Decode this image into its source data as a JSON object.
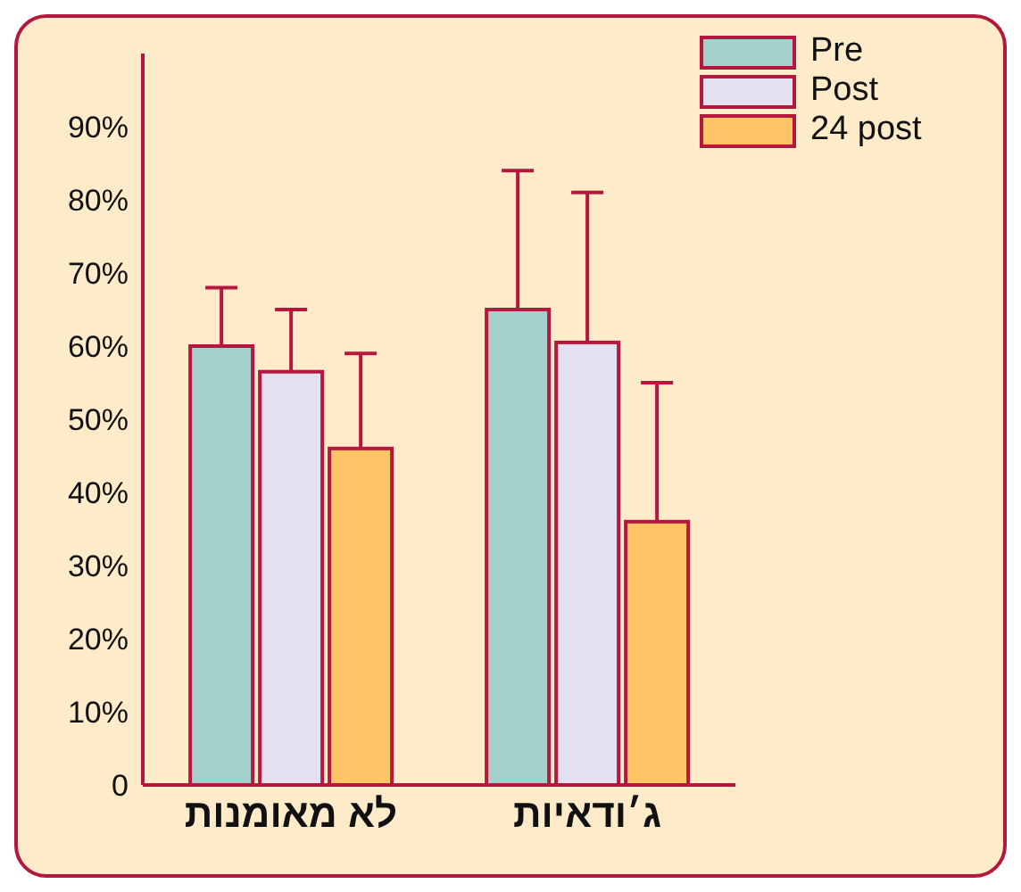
{
  "chart_data": {
    "type": "bar",
    "categories": [
      "לא מאומנות",
      "ג׳ודאיות"
    ],
    "series": [
      {
        "name": "Pre",
        "color": "#a3d0cb",
        "values": [
          60,
          65
        ],
        "errors": [
          [
            60,
            68
          ],
          [
            65,
            84
          ]
        ]
      },
      {
        "name": "Post",
        "color": "#e4e0f0",
        "values": [
          56.5,
          60.5
        ],
        "errors": [
          [
            56.5,
            65
          ],
          [
            60.5,
            81
          ]
        ]
      },
      {
        "name": "24 post",
        "color": "#fec466",
        "values": [
          46,
          36
        ],
        "errors": [
          [
            46,
            59
          ],
          [
            36,
            55
          ]
        ]
      }
    ],
    "ylim": [
      0,
      100
    ],
    "yticks": [
      0,
      {
        "value": 10,
        "label": "10%"
      },
      {
        "value": 20,
        "label": "20%"
      },
      {
        "value": 30,
        "label": "30%"
      },
      {
        "value": 40,
        "label": "40%"
      },
      {
        "value": 50,
        "label": "50%"
      },
      {
        "value": 60,
        "label": "60%"
      },
      {
        "value": 70,
        "label": "70%"
      },
      {
        "value": 80,
        "label": "80%"
      },
      {
        "value": 90,
        "label": "90%"
      }
    ],
    "grid": false,
    "legend": "top right"
  }
}
